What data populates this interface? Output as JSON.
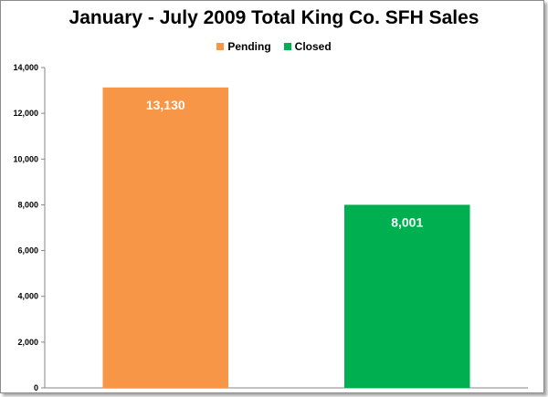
{
  "chart_data": {
    "type": "bar",
    "title": "January - July 2009 Total King Co. SFH Sales",
    "xlabel": "",
    "ylabel": "",
    "ylim": [
      0,
      14000
    ],
    "yticks": [
      0,
      2000,
      4000,
      6000,
      8000,
      10000,
      12000,
      14000
    ],
    "ytick_labels": [
      "0",
      "2,000",
      "4,000",
      "6,000",
      "8,000",
      "10,000",
      "12,000",
      "14,000"
    ],
    "grid": false,
    "legend_position": "top",
    "series": [
      {
        "name": "Pending",
        "color": "#f79646",
        "values": [
          13130
        ],
        "data_label": "13,130"
      },
      {
        "name": "Closed",
        "color": "#00b050",
        "values": [
          8001
        ],
        "data_label": "8,001"
      }
    ]
  }
}
